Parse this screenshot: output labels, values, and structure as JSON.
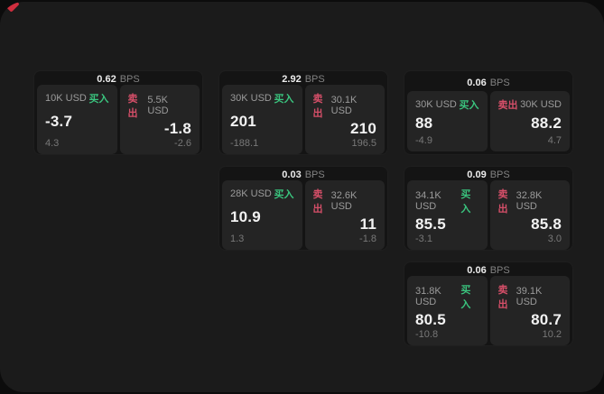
{
  "page": {
    "background": "#0c0c0c",
    "surface_background": "#1b1b1b"
  },
  "colors": {
    "buy_green": "#3ac47e",
    "sell_red": "#d64f69",
    "marker_red": "#cf2e3e"
  },
  "labels": {
    "buy": "买入",
    "sell": "卖出",
    "bps_unit": "BPS"
  },
  "cards": [
    {
      "col": 1,
      "row": 1,
      "bps": "0.62",
      "buy": {
        "amount": "10K USD",
        "price": "-3.7",
        "delta": "4.3"
      },
      "sell": {
        "amount": "5.5K USD",
        "price": "-1.8",
        "delta": "-2.6"
      }
    },
    {
      "col": 2,
      "row": 1,
      "bps": "2.92",
      "buy": {
        "amount": "30K USD",
        "price": "201",
        "delta": "-188.1"
      },
      "sell": {
        "amount": "30.1K USD",
        "price": "210",
        "delta": "196.5"
      }
    },
    {
      "col": 3,
      "row": 1,
      "bps": "0.06",
      "buy": {
        "amount": "30K USD",
        "price": "88",
        "delta": "-4.9"
      },
      "sell": {
        "amount": "30K USD",
        "price": "88.2",
        "delta": "4.7"
      }
    },
    {
      "col": 2,
      "row": 2,
      "bps": "0.03",
      "buy": {
        "amount": "28K USD",
        "price": "10.9",
        "delta": "1.3"
      },
      "sell": {
        "amount": "32.6K USD",
        "price": "11",
        "delta": "-1.8"
      }
    },
    {
      "col": 3,
      "row": 2,
      "bps": "0.09",
      "buy": {
        "amount": "34.1K USD",
        "price": "85.5",
        "delta": "-3.1"
      },
      "sell": {
        "amount": "32.8K USD",
        "price": "85.8",
        "delta": "3.0"
      }
    },
    {
      "col": 3,
      "row": 3,
      "bps": "0.06",
      "buy": {
        "amount": "31.8K USD",
        "price": "80.5",
        "delta": "-10.8"
      },
      "sell": {
        "amount": "39.1K USD",
        "price": "80.7",
        "delta": "10.2"
      }
    }
  ]
}
